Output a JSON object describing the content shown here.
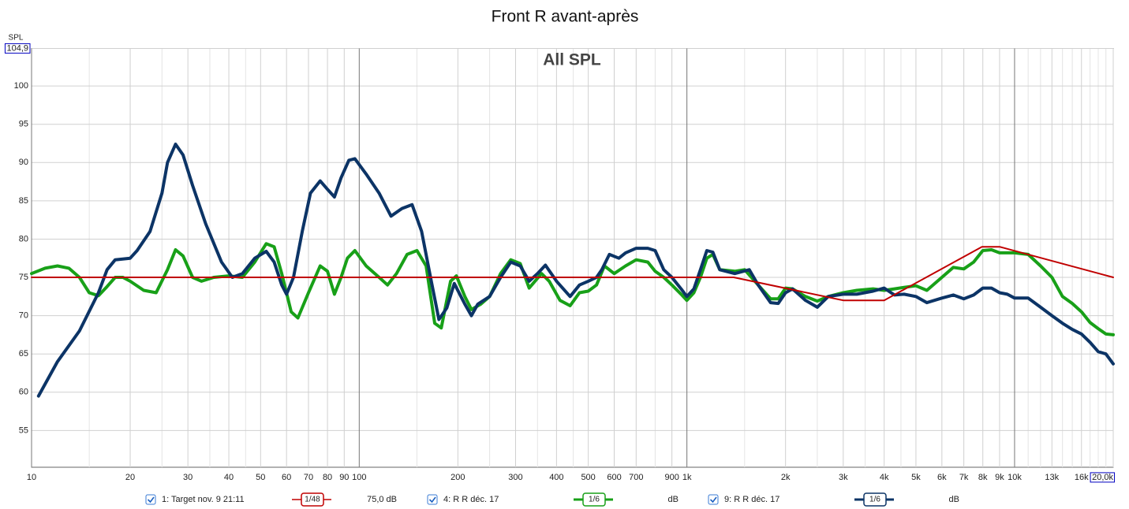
{
  "chart_data": {
    "type": "line",
    "title": "Front R avant-après",
    "subtitle": "All SPL",
    "y_label": "SPL",
    "log_x": true,
    "grid": true,
    "xlim": [
      10,
      20000
    ],
    "ylim": [
      50.2,
      104.9
    ],
    "yticks": [
      55,
      60,
      65,
      70,
      75,
      80,
      85,
      90,
      95,
      100,
      {
        "value": 104.9,
        "label": "104,9"
      }
    ],
    "xticks": [
      10,
      20,
      30,
      40,
      50,
      60,
      70,
      80,
      90,
      100,
      200,
      300,
      400,
      500,
      600,
      700,
      900,
      {
        "value": 1000,
        "label": "1k"
      },
      {
        "value": 2000,
        "label": "2k"
      },
      {
        "value": 3000,
        "label": "3k"
      },
      {
        "value": 4000,
        "label": "4k"
      },
      {
        "value": 5000,
        "label": "5k"
      },
      {
        "value": 6000,
        "label": "6k"
      },
      {
        "value": 7000,
        "label": "7k"
      },
      {
        "value": 8000,
        "label": "8k"
      },
      {
        "value": 9000,
        "label": "9k"
      },
      {
        "value": 10000,
        "label": "10k"
      },
      {
        "value": 13000,
        "label": "13k"
      },
      {
        "value": 16000,
        "label": "16k"
      },
      {
        "value": 20000,
        "label": "20,0k"
      }
    ],
    "x_minor_grid": [
      15,
      25,
      35,
      45,
      150,
      250,
      350,
      450,
      800,
      1500,
      2500,
      3500,
      4500,
      11000,
      12000,
      14000,
      15000,
      17000,
      18000,
      19000
    ],
    "series": [
      {
        "name": "1: Target nov. 9 21:11",
        "smoothing": "1/48",
        "offset": "75,0 dB",
        "color": "#c00000",
        "width": 2,
        "x": [
          10,
          1390,
          3000,
          4000,
          7950,
          9000,
          20000
        ],
        "values": [
          75,
          75,
          72,
          72,
          79,
          79,
          75
        ]
      },
      {
        "name": "4: R R déc. 17",
        "smoothing": "1/6",
        "offset": "dB",
        "color": "#18a018",
        "width": 4,
        "x": [
          10,
          11,
          12,
          13,
          14,
          15,
          16,
          17,
          18,
          19,
          20,
          22,
          24,
          26,
          27.5,
          29,
          31,
          33,
          36,
          40,
          44,
          48,
          52,
          55,
          58,
          62,
          65,
          70,
          76,
          80,
          84,
          88,
          92,
          97,
          105,
          115,
          122,
          130,
          140,
          150,
          160,
          170,
          178,
          190,
          198,
          210,
          220,
          235,
          250,
          270,
          290,
          310,
          330,
          360,
          380,
          410,
          440,
          470,
          500,
          530,
          560,
          600,
          650,
          700,
          760,
          800,
          850,
          900,
          960,
          1000,
          1050,
          1100,
          1150,
          1200,
          1260,
          1400,
          1500,
          1650,
          1800,
          1900,
          2000,
          2100,
          2300,
          2500,
          2700,
          3000,
          3300,
          3700,
          4000,
          4300,
          4600,
          5000,
          5400,
          6000,
          6500,
          7000,
          7500,
          8000,
          8500,
          9000,
          10000,
          11000,
          12000,
          13000,
          14000,
          15000,
          16000,
          17000,
          18000,
          19000,
          20000
        ],
        "values": [
          75.5,
          76.2,
          76.5,
          76.2,
          75,
          73,
          72.6,
          73.8,
          75,
          75,
          74.5,
          73.3,
          73,
          76,
          78.6,
          77.8,
          75,
          74.5,
          75,
          75.2,
          75,
          77,
          79.4,
          79,
          75.5,
          70.5,
          69.7,
          73,
          76.5,
          75.8,
          72.8,
          75,
          77.5,
          78.5,
          76.5,
          75,
          74,
          75.5,
          78,
          78.5,
          76.5,
          69,
          68.4,
          74.5,
          75.2,
          72.5,
          70.8,
          71.5,
          72.5,
          75.5,
          77.3,
          76.8,
          73.6,
          75.5,
          74.5,
          72,
          71.3,
          73,
          73.2,
          74,
          76.5,
          75.5,
          76.5,
          77.3,
          77,
          75.8,
          75,
          74,
          72.8,
          72,
          73,
          75,
          77.5,
          78,
          76,
          75.8,
          76,
          74,
          72.2,
          72.2,
          73.6,
          73.5,
          72.5,
          71.9,
          72.5,
          73,
          73.3,
          73.5,
          73.3,
          73.5,
          73.7,
          73.9,
          73.3,
          75,
          76.3,
          76.1,
          77,
          78.5,
          78.6,
          78.2,
          78.2,
          78,
          76.5,
          75,
          72.5,
          71.6,
          70.5,
          69.1,
          68.3,
          67.6,
          67.5
        ]
      },
      {
        "name": "9: R R déc. 17",
        "smoothing": "1/6",
        "offset": "dB",
        "color": "#0c3466",
        "width": 4,
        "x": [
          10.5,
          12,
          14,
          16,
          17,
          18,
          20,
          21,
          23,
          25,
          26,
          27.5,
          29,
          31,
          34,
          38,
          41,
          44,
          48,
          52,
          55,
          58,
          60,
          63,
          67,
          71,
          76,
          80,
          84,
          88,
          93,
          97,
          105,
          115,
          125,
          135,
          145,
          155,
          165,
          175,
          185,
          195,
          210,
          220,
          230,
          250,
          270,
          290,
          310,
          330,
          350,
          370,
          400,
          440,
          470,
          500,
          530,
          550,
          580,
          620,
          650,
          700,
          760,
          800,
          850,
          900,
          960,
          1000,
          1050,
          1100,
          1150,
          1200,
          1260,
          1400,
          1550,
          1650,
          1800,
          1900,
          2000,
          2100,
          2300,
          2500,
          2700,
          3000,
          3300,
          3700,
          4000,
          4300,
          4600,
          5000,
          5400,
          6000,
          6500,
          7000,
          7500,
          8000,
          8500,
          9000,
          9500,
          10000,
          11000,
          12000,
          13000,
          14000,
          15000,
          16000,
          17000,
          18000,
          19000,
          20000
        ],
        "values": [
          59.5,
          64,
          68,
          73,
          76,
          77.3,
          77.5,
          78.5,
          81,
          86,
          90,
          92.4,
          91,
          87,
          82,
          77,
          75,
          75.5,
          77.5,
          78.4,
          77,
          74,
          72.8,
          75,
          81,
          86,
          87.6,
          86.5,
          85.5,
          88,
          90.3,
          90.5,
          88.5,
          86,
          83,
          84,
          84.5,
          81,
          75,
          69.5,
          71,
          74.2,
          71.5,
          70,
          71.5,
          72.5,
          75,
          77,
          76.5,
          74.5,
          75.5,
          76.6,
          74.5,
          72.5,
          74,
          74.5,
          75,
          76,
          78,
          77.5,
          78.2,
          78.8,
          78.8,
          78.5,
          76,
          75,
          73.5,
          72.5,
          73.5,
          76,
          78.5,
          78.3,
          76,
          75.5,
          76,
          74,
          71.7,
          71.6,
          73,
          73.5,
          72,
          71.1,
          72.5,
          72.8,
          72.8,
          73.2,
          73.6,
          72.7,
          72.8,
          72.5,
          71.7,
          72.3,
          72.7,
          72.2,
          72.7,
          73.6,
          73.6,
          73,
          72.8,
          72.3,
          72.3,
          71.1,
          70,
          69,
          68.2,
          67.6,
          66.5,
          65.3,
          65,
          63.7
        ]
      }
    ]
  }
}
